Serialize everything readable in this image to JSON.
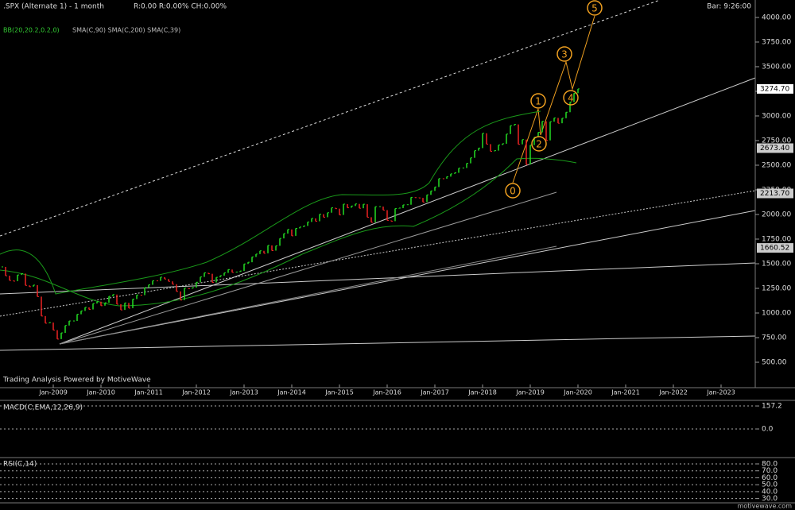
{
  "chart_data": [
    {
      "type": "price",
      "title": ".SPX (Alternate 1) - 1 month",
      "stats": "R:0.00  R:0.00%  CH:0.00%",
      "clock": "Bar: 9:26:00",
      "studies": [
        "BB(20,20.2,0.2,0)",
        "SMA(C,90) SMA(C,200) SMA(C,39)"
      ],
      "credit": "Trading Analysis Powered by MotiveWave",
      "wave_labels": [
        0,
        1,
        2,
        3,
        4,
        5
      ],
      "ylim": [
        242,
        4177
      ],
      "yticks": [
        {
          "value": 500,
          "label": "500.00"
        },
        {
          "value": 750,
          "label": "750.00"
        },
        {
          "value": 1000,
          "label": "1000.00"
        },
        {
          "value": 1250,
          "label": "1250.00"
        },
        {
          "value": 1500,
          "label": "1500.00"
        },
        {
          "value": 1750,
          "label": "1750.00"
        },
        {
          "value": 2000,
          "label": "2000.00"
        },
        {
          "value": 2250,
          "label": "2250.00"
        },
        {
          "value": 2500,
          "label": "2500.00"
        },
        {
          "value": 2750,
          "label": "2750.00"
        },
        {
          "value": 3000,
          "label": "3000.00"
        },
        {
          "value": 3250,
          "label": "3250.00"
        },
        {
          "value": 3500,
          "label": "3500.00"
        },
        {
          "value": 3750,
          "label": "3750.00"
        },
        {
          "value": 4000,
          "label": "4000.00"
        }
      ],
      "price_markers": [
        {
          "value": 3274.7,
          "label": "3274.70"
        },
        {
          "value": 2673.4,
          "label": "2673.40"
        },
        {
          "value": 2213.7,
          "label": "2213.70"
        },
        {
          "value": 1660.52,
          "label": "1660.52"
        }
      ],
      "xticks": [
        {
          "value": "2009-01",
          "label": "Jan-2009"
        },
        {
          "value": "2010-01",
          "label": "Jan-2010"
        },
        {
          "value": "2011-01",
          "label": "Jan-2011"
        },
        {
          "value": "2012-01",
          "label": "Jan-2012"
        },
        {
          "value": "2013-01",
          "label": "Jan-2013"
        },
        {
          "value": "2014-01",
          "label": "Jan-2014"
        },
        {
          "value": "2015-01",
          "label": "Jan-2015"
        },
        {
          "value": "2016-01",
          "label": "Jan-2016"
        },
        {
          "value": "2017-01",
          "label": "Jan-2017"
        },
        {
          "value": "2018-01",
          "label": "Jan-2018"
        },
        {
          "value": "2019-01",
          "label": "Jan-2019"
        },
        {
          "value": "2020-01",
          "label": "Jan-2020"
        },
        {
          "value": "2021-01",
          "label": "Jan-2021"
        },
        {
          "value": "2022-01",
          "label": "Jan-2022"
        },
        {
          "value": "2023-01",
          "label": "Jan-2023"
        }
      ],
      "x": [
        "2007-12",
        "2008-01",
        "2008-02",
        "2008-03",
        "2008-04",
        "2008-05",
        "2008-06",
        "2008-07",
        "2008-08",
        "2008-09",
        "2008-10",
        "2008-11",
        "2008-12",
        "2009-01",
        "2009-02",
        "2009-03",
        "2009-04",
        "2009-05",
        "2009-06",
        "2009-07",
        "2009-08",
        "2009-09",
        "2009-10",
        "2009-11",
        "2009-12",
        "2010-01",
        "2010-02",
        "2010-03",
        "2010-04",
        "2010-05",
        "2010-06",
        "2010-07",
        "2010-08",
        "2010-09",
        "2010-10",
        "2010-11",
        "2010-12",
        "2011-01",
        "2011-02",
        "2011-03",
        "2011-04",
        "2011-05",
        "2011-06",
        "2011-07",
        "2011-08",
        "2011-09",
        "2011-10",
        "2011-11",
        "2011-12",
        "2012-01",
        "2012-02",
        "2012-03",
        "2012-04",
        "2012-05",
        "2012-06",
        "2012-07",
        "2012-08",
        "2012-09",
        "2012-10",
        "2012-11",
        "2012-12",
        "2013-01",
        "2013-02",
        "2013-03",
        "2013-04",
        "2013-05",
        "2013-06",
        "2013-07",
        "2013-08",
        "2013-09",
        "2013-10",
        "2013-11",
        "2013-12",
        "2014-01",
        "2014-02",
        "2014-03",
        "2014-04",
        "2014-05",
        "2014-06",
        "2014-07",
        "2014-08",
        "2014-09",
        "2014-10",
        "2014-11",
        "2014-12",
        "2015-01",
        "2015-02",
        "2015-03",
        "2015-04",
        "2015-05",
        "2015-06",
        "2015-07",
        "2015-08",
        "2015-09",
        "2015-10",
        "2015-11",
        "2015-12",
        "2016-01",
        "2016-02",
        "2016-03",
        "2016-04",
        "2016-05",
        "2016-06",
        "2016-07",
        "2016-08",
        "2016-09",
        "2016-10",
        "2016-11",
        "2016-12",
        "2017-01",
        "2017-02",
        "2017-03",
        "2017-04",
        "2017-05",
        "2017-06",
        "2017-07",
        "2017-08",
        "2017-09",
        "2017-10",
        "2017-11",
        "2017-12",
        "2018-01",
        "2018-02",
        "2018-03",
        "2018-04",
        "2018-05",
        "2018-06",
        "2018-07",
        "2018-08",
        "2018-09",
        "2018-10",
        "2018-11",
        "2018-12",
        "2019-01",
        "2019-02",
        "2019-03",
        "2019-04",
        "2019-05",
        "2019-06",
        "2019-07",
        "2019-08",
        "2019-09",
        "2019-10",
        "2019-11",
        "2019-12",
        "2020-01"
      ],
      "values": [
        1468,
        1378,
        1330,
        1323,
        1386,
        1400,
        1280,
        1267,
        1283,
        1166,
        969,
        896,
        903,
        826,
        735,
        798,
        873,
        919,
        919,
        987,
        1021,
        1057,
        1036,
        1096,
        1115,
        1074,
        1104,
        1169,
        1187,
        1089,
        1031,
        1102,
        1049,
        1141,
        1183,
        1181,
        1258,
        1286,
        1327,
        1326,
        1364,
        1345,
        1321,
        1292,
        1219,
        1131,
        1253,
        1247,
        1258,
        1312,
        1366,
        1408,
        1398,
        1310,
        1362,
        1379,
        1407,
        1441,
        1412,
        1416,
        1426,
        1498,
        1515,
        1569,
        1598,
        1631,
        1606,
        1686,
        1633,
        1682,
        1757,
        1806,
        1848,
        1783,
        1859,
        1872,
        1884,
        1924,
        1960,
        1931,
        2003,
        1972,
        2018,
        2068,
        2059,
        1995,
        2105,
        2068,
        2086,
        2107,
        2063,
        2104,
        1972,
        1920,
        2079,
        2080,
        2044,
        1940,
        1932,
        2060,
        2065,
        2097,
        2099,
        2174,
        2171,
        2168,
        2126,
        2199,
        2239,
        2279,
        2364,
        2363,
        2384,
        2412,
        2423,
        2470,
        2472,
        2519,
        2575,
        2648,
        2674,
        2824,
        2714,
        2641,
        2648,
        2705,
        2718,
        2816,
        2902,
        2914,
        2712,
        2760,
        2507,
        2704,
        2784,
        2834,
        2946,
        2752,
        2942,
        2980,
        2926,
        2977,
        3038,
        3141,
        3231,
        3274.7
      ],
      "up_color": "#22dd22",
      "down_color": "#ee2222"
    },
    {
      "type": "macd",
      "title": "MACD(C,EMA,12,26,9)",
      "ylim": [
        -190,
        190
      ],
      "yticks": [
        {
          "value": 157.2,
          "label": "157.2"
        },
        {
          "value": 0,
          "label": "0.0"
        }
      ]
    },
    {
      "type": "rsi",
      "title": "RSI(C,14)",
      "ylim": [
        25,
        88
      ],
      "yticks": [
        {
          "value": 80,
          "label": "80.0"
        },
        {
          "value": 70,
          "label": "70.0"
        },
        {
          "value": 60,
          "label": "60.0"
        },
        {
          "value": 50,
          "label": "50.0"
        },
        {
          "value": 40,
          "label": "40.0"
        },
        {
          "value": 30,
          "label": "30.0"
        }
      ]
    }
  ],
  "footer": "motivewave.com"
}
